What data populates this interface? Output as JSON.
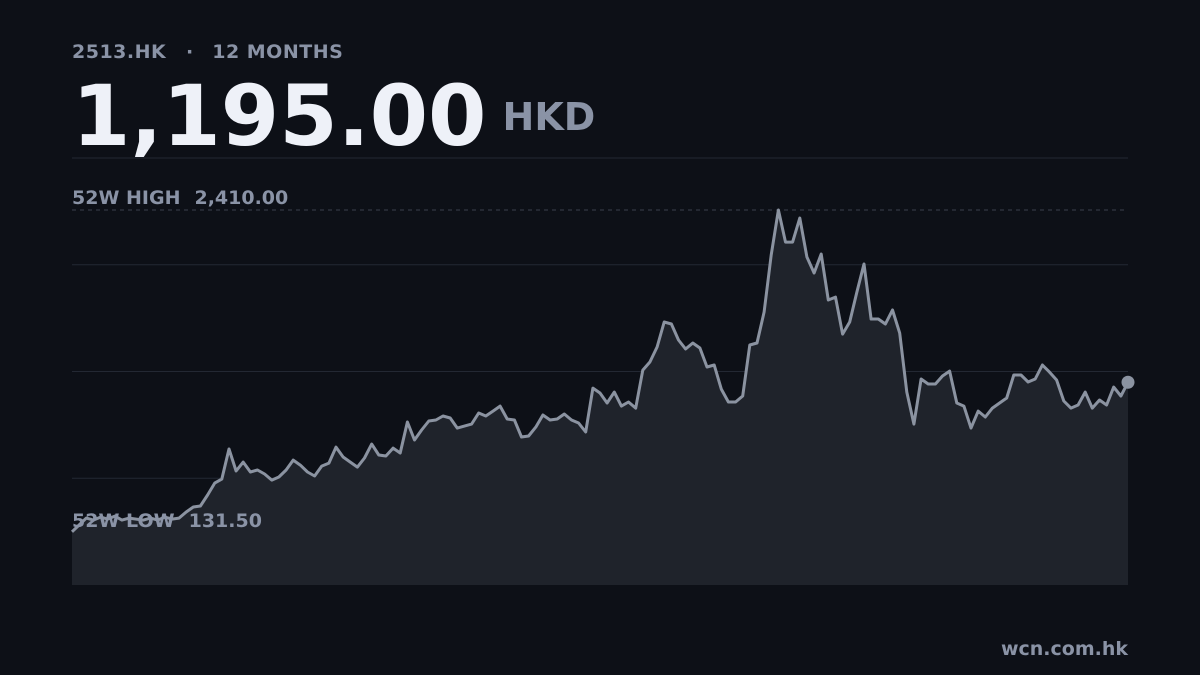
{
  "chart_data": {
    "type": "line",
    "ticker": "2513.HK",
    "separator": "·",
    "period": "12 MONTHS",
    "price": {
      "value": 1195,
      "label": "1,195.00"
    },
    "currency": "HKD",
    "annotations": [
      {
        "label": "52W HIGH",
        "value": 2410,
        "value_label": "2,410.00"
      },
      {
        "label": "52W LOW",
        "value": 131.5,
        "value_label": "131.50"
      }
    ],
    "source": "wcn.com.hk",
    "color": "#8b93a1",
    "fill": "#1f232b",
    "ylim": [
      -235,
      2777
    ],
    "values": [
      140,
      188,
      237,
      223,
      244,
      230,
      251,
      223,
      237,
      230,
      223,
      237,
      223,
      244,
      230,
      237,
      280,
      315,
      322,
      400,
      484,
      512,
      724,
      569,
      632,
      562,
      576,
      548,
      505,
      527,
      576,
      646,
      611,
      562,
      534,
      604,
      625,
      738,
      668,
      632,
      597,
      661,
      759,
      682,
      675,
      731,
      696,
      915,
      788,
      858,
      922,
      929,
      957,
      943,
      872,
      886,
      900,
      978,
      957,
      992,
      1027,
      936,
      929,
      809,
      816,
      879,
      964,
      929,
      936,
      971,
      929,
      908,
      844,
      1154,
      1119,
      1049,
      1126,
      1027,
      1056,
      1013,
      1281,
      1338,
      1444,
      1620,
      1606,
      1493,
      1430,
      1472,
      1437,
      1303,
      1317,
      1147,
      1056,
      1056,
      1098,
      1458,
      1472,
      1690,
      2093,
      2410,
      2184,
      2184,
      2354,
      2079,
      1966,
      2100,
      1775,
      1796,
      1535,
      1620,
      1832,
      2029,
      1641,
      1641,
      1606,
      1705,
      1542,
      1126,
      900,
      1218,
      1183,
      1183,
      1239,
      1274,
      1049,
      1027,
      872,
      992,
      950,
      1013,
      1049,
      1084,
      1246,
      1246,
      1197,
      1218,
      1317,
      1267,
      1211,
      1063,
      1013,
      1035,
      1126,
      1013,
      1070,
      1035,
      1161,
      1098,
      1195
    ]
  }
}
